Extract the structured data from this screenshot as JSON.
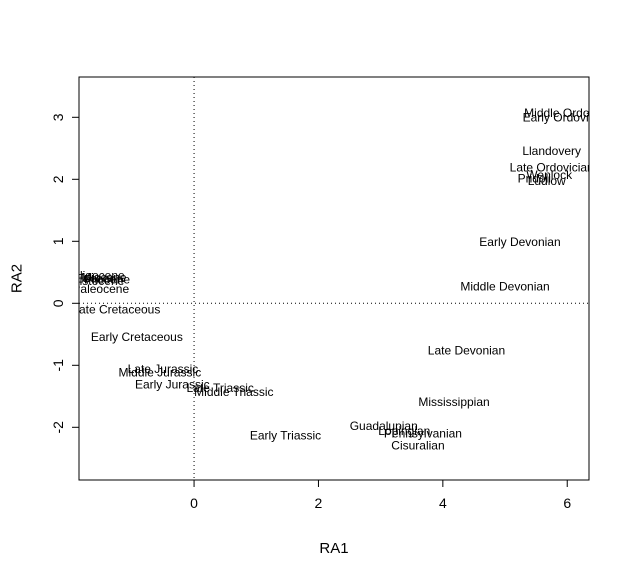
{
  "chart_data": {
    "type": "scatter",
    "xlabel": "RA1",
    "ylabel": "RA2",
    "xlim": [
      -1.85,
      6.35
    ],
    "ylim": [
      -2.85,
      3.65
    ],
    "xticks": [
      0,
      2,
      4,
      6
    ],
    "yticks": [
      -2,
      -1,
      0,
      1,
      2,
      3
    ],
    "reference_lines": {
      "x": 0,
      "y": 0,
      "style": "dotted"
    },
    "points": [
      {
        "label": "Middle Ordovician",
        "x": 6.08,
        "y": 3.07
      },
      {
        "label": "Early Ordovician",
        "x": 5.99,
        "y": 3.0
      },
      {
        "label": "Llandovery",
        "x": 5.75,
        "y": 2.46
      },
      {
        "label": "Late Ordovician",
        "x": 5.75,
        "y": 2.19
      },
      {
        "label": "Wenlock",
        "x": 5.71,
        "y": 2.07
      },
      {
        "label": "Pridoli",
        "x": 5.47,
        "y": 2.01
      },
      {
        "label": "Ludlow",
        "x": 5.67,
        "y": 1.97
      },
      {
        "label": "Early Devonian",
        "x": 5.24,
        "y": 0.99
      },
      {
        "label": "Middle Devonian",
        "x": 5.0,
        "y": 0.27
      },
      {
        "label": "Late Devonian",
        "x": 4.38,
        "y": -0.76
      },
      {
        "label": "Mississippian",
        "x": 4.18,
        "y": -1.59
      },
      {
        "label": "Guadalupian",
        "x": 3.05,
        "y": -1.98
      },
      {
        "label": "Lopingian",
        "x": 3.38,
        "y": -2.06
      },
      {
        "label": "Pennsylvanian",
        "x": 3.68,
        "y": -2.1
      },
      {
        "label": "Cisuralian",
        "x": 3.6,
        "y": -2.29
      },
      {
        "label": "Early Triassic",
        "x": 1.47,
        "y": -2.13
      },
      {
        "label": "Middle Triassic",
        "x": 0.64,
        "y": -1.43
      },
      {
        "label": "Late Triassic",
        "x": 0.42,
        "y": -1.37
      },
      {
        "label": "Early Jurassic",
        "x": -0.35,
        "y": -1.31
      },
      {
        "label": "Middle Jurassic",
        "x": -0.55,
        "y": -1.12
      },
      {
        "label": "Late Jurassic",
        "x": -0.5,
        "y": -1.06
      },
      {
        "label": "Early Cretaceous",
        "x": -0.92,
        "y": -0.54
      },
      {
        "label": "Late Cretaceous",
        "x": -1.25,
        "y": -0.1
      },
      {
        "label": "Paleocene",
        "x": -1.5,
        "y": 0.23
      },
      {
        "label": "Eocene",
        "x": -1.58,
        "y": 0.4
      },
      {
        "label": "Oligocene",
        "x": -1.55,
        "y": 0.45
      },
      {
        "label": "Miocene",
        "x": -1.45,
        "y": 0.42
      },
      {
        "label": "Pliocene",
        "x": -1.4,
        "y": 0.38
      },
      {
        "label": "Pleistocene",
        "x": -1.62,
        "y": 0.36
      }
    ]
  }
}
